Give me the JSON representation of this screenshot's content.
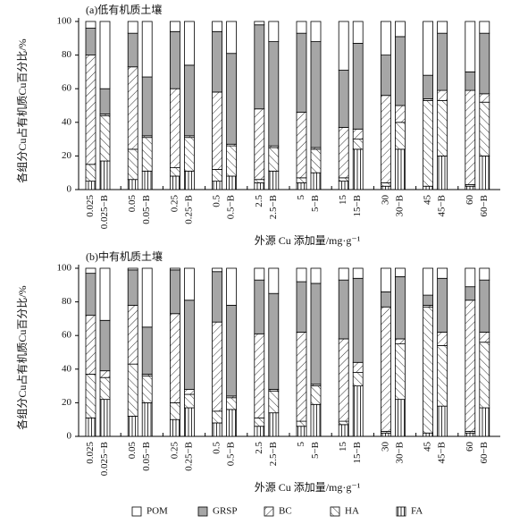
{
  "chart_data": [
    {
      "type": "bar",
      "stacked": true,
      "title": "(a)低有机质土壤",
      "x_label": "外源 Cu 添加量/mg·g⁻¹",
      "y_label": "各组分Cu占有机质Cu百分比/%",
      "categories": [
        "0.025",
        "0.025−B",
        "0.05",
        "0.05−B",
        "0.25",
        "0.25−B",
        "0.5",
        "0.5−B",
        "2.5",
        "2.5−B",
        "5",
        "5−B",
        "15",
        "15−B",
        "30",
        "30−B",
        "45",
        "45−B",
        "60",
        "60−B"
      ],
      "ylim": [
        0,
        100
      ],
      "yticks": [
        0,
        20,
        40,
        60,
        80,
        100
      ],
      "series": [
        {
          "name": "FA",
          "color": "#ffffff",
          "pattern": "vertical",
          "values": [
            5,
            17,
            6,
            11,
            8,
            11,
            5,
            8,
            4,
            11,
            4,
            10,
            5,
            24,
            2,
            24,
            2,
            20,
            2,
            20
          ]
        },
        {
          "name": "HA",
          "color": "#ffffff",
          "pattern": "backslash",
          "values": [
            10,
            27,
            18,
            20,
            5,
            20,
            7,
            18,
            2,
            14,
            3,
            14,
            2,
            6,
            2,
            16,
            51,
            33,
            1,
            32
          ]
        },
        {
          "name": "BC",
          "color": "#ffffff",
          "pattern": "slash",
          "values": [
            65,
            1,
            49,
            1,
            47,
            1,
            46,
            1,
            42,
            1,
            39,
            1,
            30,
            6,
            52,
            10,
            1,
            6,
            56,
            5
          ]
        },
        {
          "name": "GRSP",
          "color": "#a6a6a6",
          "pattern": "solid",
          "values": [
            16,
            15,
            20,
            35,
            34,
            42,
            36,
            54,
            50,
            62,
            47,
            63,
            34,
            51,
            24,
            41,
            14,
            34,
            11,
            36
          ]
        },
        {
          "name": "POM",
          "color": "#ffffff",
          "pattern": "solid",
          "values": [
            4,
            40,
            7,
            33,
            6,
            26,
            6,
            19,
            2,
            12,
            7,
            12,
            29,
            13,
            20,
            9,
            32,
            7,
            30,
            7
          ]
        }
      ]
    },
    {
      "type": "bar",
      "stacked": true,
      "title": "(b)中有机质土壤",
      "x_label": "外源 Cu 添加量/mg·g⁻¹",
      "y_label": "各组分Cu占有机质Cu百分比/%",
      "categories": [
        "0.025",
        "0.025−B",
        "0.05",
        "0.05−B",
        "0.25",
        "0.25−B",
        "0.5",
        "0.5−B",
        "2.5",
        "2.5−B",
        "5",
        "5−B",
        "15",
        "15−B",
        "30",
        "30−B",
        "45",
        "45−B",
        "60",
        "60−B"
      ],
      "ylim": [
        0,
        100
      ],
      "yticks": [
        0,
        20,
        40,
        60,
        80,
        100
      ],
      "series": [
        {
          "name": "FA",
          "color": "#ffffff",
          "pattern": "vertical",
          "values": [
            11,
            22,
            12,
            20,
            10,
            17,
            8,
            16,
            6,
            14,
            6,
            19,
            7,
            30,
            2,
            22,
            2,
            18,
            2,
            17
          ]
        },
        {
          "name": "HA",
          "color": "#ffffff",
          "pattern": "backslash",
          "values": [
            26,
            13,
            31,
            16,
            10,
            8,
            7,
            7,
            5,
            13,
            3,
            11,
            2,
            8,
            1,
            33,
            75,
            36,
            1,
            39
          ]
        },
        {
          "name": "BC",
          "color": "#ffffff",
          "pattern": "slash",
          "values": [
            35,
            4,
            35,
            1,
            53,
            3,
            53,
            1,
            50,
            1,
            53,
            1,
            49,
            6,
            74,
            3,
            1,
            8,
            78,
            6
          ]
        },
        {
          "name": "GRSP",
          "color": "#a6a6a6",
          "pattern": "solid",
          "values": [
            25,
            30,
            21,
            28,
            26,
            53,
            30,
            54,
            32,
            57,
            30,
            60,
            35,
            50,
            9,
            37,
            6,
            32,
            8,
            31
          ]
        },
        {
          "name": "POM",
          "color": "#ffffff",
          "pattern": "solid",
          "values": [
            3,
            31,
            1,
            35,
            1,
            19,
            2,
            22,
            7,
            15,
            8,
            9,
            7,
            6,
            14,
            5,
            16,
            6,
            11,
            7
          ]
        }
      ]
    }
  ]
}
